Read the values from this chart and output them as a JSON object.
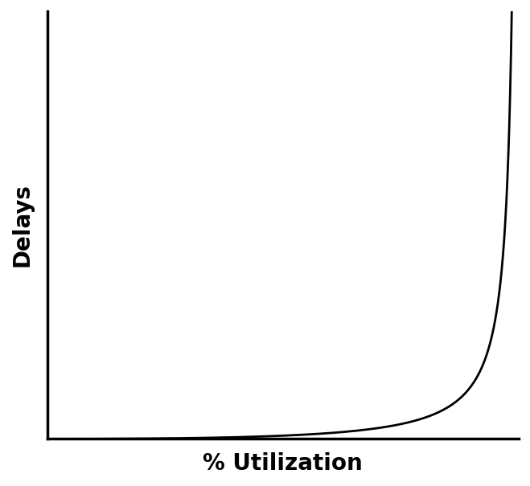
{
  "xlabel": "% Utilization",
  "ylabel": "Delays",
  "background_color": "#ffffff",
  "line_color": "#000000",
  "line_width": 2.0,
  "axis_color": "#000000",
  "xlabel_fontsize": 20,
  "ylabel_fontsize": 20,
  "xlabel_fontweight": "bold",
  "ylabel_fontweight": "bold",
  "rho_max": 0.985,
  "xlim": [
    0,
    1.0
  ],
  "ylim": [
    0,
    1.0
  ],
  "figsize": [
    6.59,
    6.05
  ],
  "dpi": 100
}
